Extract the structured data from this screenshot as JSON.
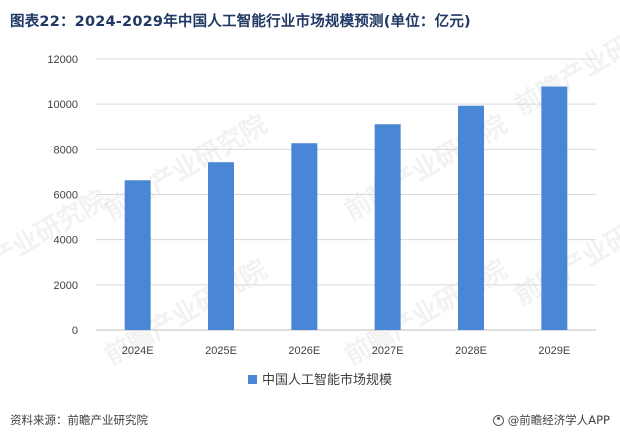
{
  "title": "图表22：2024-2029年中国人工智能行业市场规模预测(单位：亿元)",
  "footer": {
    "source": "资料来源：前瞻产业研究院",
    "brand": "@前瞻经济学人APP"
  },
  "watermark_text": "前瞻产业研究院",
  "colors": {
    "bar": "#4a86d6",
    "gridline": "#d9d9d9",
    "axis": "#bfbfbf",
    "title": "#1f3864"
  },
  "chart_data": {
    "type": "bar",
    "title": "图表22：2024-2029年中国人工智能行业市场规模预测(单位：亿元)",
    "categories": [
      "2024E",
      "2025E",
      "2026E",
      "2027E",
      "2028E",
      "2029E"
    ],
    "series": [
      {
        "name": "中国人工智能市场规模",
        "values": [
          6630,
          7430,
          8270,
          9110,
          9930,
          10780
        ]
      }
    ],
    "ylim": [
      0,
      12000
    ],
    "yticks": [
      0,
      2000,
      4000,
      6000,
      8000,
      10000,
      12000
    ],
    "grid": true,
    "legend_position": "bottom-center"
  }
}
